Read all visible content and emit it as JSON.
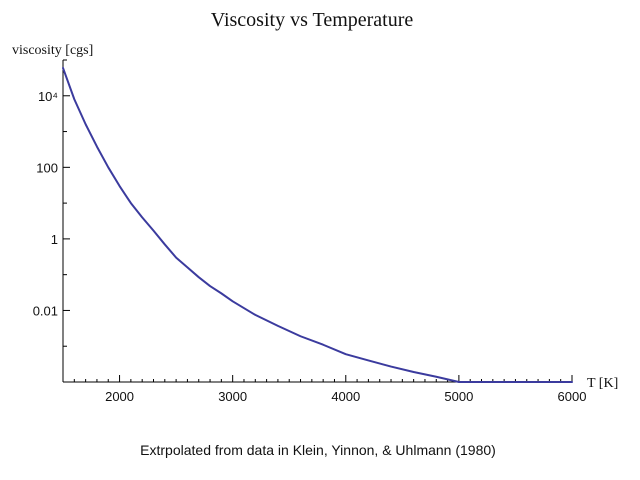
{
  "chart_data": {
    "type": "line",
    "title": "Viscosity vs Temperature",
    "xlabel": "T [K]",
    "ylabel": "viscosity [cgs]",
    "caption": "Extrpolated from data in Klein, Yinnon, & Uhlmann (1980)",
    "y_scale": "log",
    "xlim": [
      1500,
      6000
    ],
    "ylim": [
      0.0001,
      100000
    ],
    "x_ticks": [
      2000,
      3000,
      4000,
      5000,
      6000
    ],
    "x_tick_labels": [
      "2000",
      "3000",
      "4000",
      "5000",
      "6000"
    ],
    "y_ticks": [
      10000,
      100,
      1,
      0.01
    ],
    "y_tick_labels": [
      "10⁴",
      "100",
      "1",
      "0.01"
    ],
    "grid": false,
    "colors": {
      "line": "#3b3b9e",
      "axis": "#000000"
    },
    "series": [
      {
        "x": [
          1500,
          1600,
          1700,
          1800,
          1900,
          2000,
          2100,
          2200,
          2300,
          2400,
          2500,
          2600,
          2700,
          2800,
          2900,
          3000,
          3200,
          3400,
          3600,
          3800,
          4000,
          4200,
          4400,
          4600,
          4800,
          5000,
          5200,
          5400,
          5600,
          5800,
          6000
        ],
        "y": [
          60000,
          8000,
          1600,
          380,
          100,
          30,
          10,
          4,
          1.7,
          0.7,
          0.3,
          0.16,
          0.085,
          0.048,
          0.03,
          0.018,
          0.0075,
          0.0037,
          0.0019,
          0.0011,
          0.0006,
          0.0004,
          0.00027,
          0.00019,
          0.00014,
          0.0001,
          8e-05,
          6.5e-05,
          5.5e-05,
          4.8e-05,
          4e-05
        ]
      }
    ]
  }
}
